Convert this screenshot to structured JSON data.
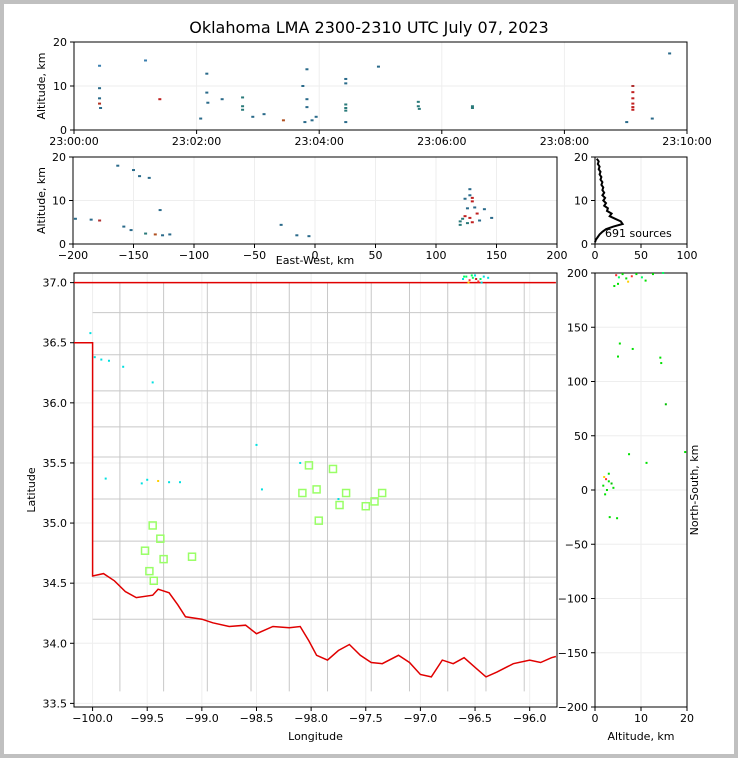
{
  "title": "Oklahoma LMA 2300-2310 UTC July 07, 2023",
  "colors": {
    "background": "#c0c0c0",
    "state_border": "#e00000",
    "county_lines": "#c8c8c8",
    "grid": "#eeeeee",
    "station_marker": "#99ff66"
  },
  "chart_data": [
    {
      "id": "time-height",
      "type": "scatter",
      "xlabel": "",
      "ylabel": "Altitude, km",
      "x_ticks": [
        "23:00:00",
        "23:02:00",
        "23:04:00",
        "23:06:00",
        "23:08:00",
        "23:10:00"
      ],
      "y_ticks": [
        "0",
        "10",
        "20"
      ],
      "xlim": [
        "23:00:00",
        "23:10:00"
      ],
      "ylim": [
        0,
        20
      ],
      "points": [
        {
          "t": 25,
          "alt": 14.6,
          "c": "#3a7fb0"
        },
        {
          "t": 25,
          "alt": 9.5,
          "c": "#2a6a8a"
        },
        {
          "t": 25,
          "alt": 7.2,
          "c": "#2a6a8a"
        },
        {
          "t": 25,
          "alt": 6.0,
          "c": "#b03020"
        },
        {
          "t": 26,
          "alt": 5.0,
          "c": "#2a6a8a"
        },
        {
          "t": 70,
          "alt": 15.8,
          "c": "#3a7fb0"
        },
        {
          "t": 84,
          "alt": 7.0,
          "c": "#c02020"
        },
        {
          "t": 124,
          "alt": 2.6,
          "c": "#2a6a8a"
        },
        {
          "t": 130,
          "alt": 12.8,
          "c": "#2a6a8a"
        },
        {
          "t": 130,
          "alt": 8.5,
          "c": "#2a6a8a"
        },
        {
          "t": 131,
          "alt": 6.2,
          "c": "#2a6a8a"
        },
        {
          "t": 145,
          "alt": 7.0,
          "c": "#2a6a8a"
        },
        {
          "t": 165,
          "alt": 7.4,
          "c": "#2a7a7a"
        },
        {
          "t": 165,
          "alt": 5.4,
          "c": "#2a7a7a"
        },
        {
          "t": 165,
          "alt": 4.6,
          "c": "#2a7a7a"
        },
        {
          "t": 175,
          "alt": 3.0,
          "c": "#2a6a8a"
        },
        {
          "t": 186,
          "alt": 3.6,
          "c": "#2a6a8a"
        },
        {
          "t": 205,
          "alt": 2.2,
          "c": "#b05020"
        },
        {
          "t": 224,
          "alt": 10.0,
          "c": "#2a6a8a"
        },
        {
          "t": 226,
          "alt": 1.8,
          "c": "#2a6a8a"
        },
        {
          "t": 228,
          "alt": 13.8,
          "c": "#2a6a8a"
        },
        {
          "t": 228,
          "alt": 7.0,
          "c": "#2a6a8a"
        },
        {
          "t": 228,
          "alt": 5.2,
          "c": "#2a6a8a"
        },
        {
          "t": 233,
          "alt": 2.2,
          "c": "#2a6a8a"
        },
        {
          "t": 237,
          "alt": 3.0,
          "c": "#2a6a8a"
        },
        {
          "t": 266,
          "alt": 11.6,
          "c": "#2a6a8a"
        },
        {
          "t": 266,
          "alt": 10.6,
          "c": "#2a6a8a"
        },
        {
          "t": 266,
          "alt": 5.8,
          "c": "#2a7a7a"
        },
        {
          "t": 266,
          "alt": 5.0,
          "c": "#2a7a7a"
        },
        {
          "t": 266,
          "alt": 4.4,
          "c": "#2a7a7a"
        },
        {
          "t": 266,
          "alt": 1.8,
          "c": "#2a6a8a"
        },
        {
          "t": 298,
          "alt": 14.4,
          "c": "#2a6a8a"
        },
        {
          "t": 337,
          "alt": 6.4,
          "c": "#2a7a7a"
        },
        {
          "t": 337,
          "alt": 5.4,
          "c": "#2a7a7a"
        },
        {
          "t": 338,
          "alt": 4.8,
          "c": "#2a7a7a"
        },
        {
          "t": 390,
          "alt": 5.4,
          "c": "#2a7a7a"
        },
        {
          "t": 390,
          "alt": 5.0,
          "c": "#2a7a7a"
        },
        {
          "t": 547,
          "alt": 10.0,
          "c": "#b03030"
        },
        {
          "t": 547,
          "alt": 8.6,
          "c": "#c02020"
        },
        {
          "t": 547,
          "alt": 7.2,
          "c": "#c02020"
        },
        {
          "t": 547,
          "alt": 6.0,
          "c": "#c02020"
        },
        {
          "t": 547,
          "alt": 5.2,
          "c": "#c02020"
        },
        {
          "t": 547,
          "alt": 4.6,
          "c": "#c02020"
        },
        {
          "t": 541,
          "alt": 1.8,
          "c": "#2a6a8a"
        },
        {
          "t": 566,
          "alt": 2.6,
          "c": "#2a6a8a"
        },
        {
          "t": 583,
          "alt": 17.4,
          "c": "#2a6a8a"
        }
      ]
    },
    {
      "id": "east-west-altitude",
      "type": "scatter",
      "xlabel": "East-West, km",
      "ylabel": "Altitude, km",
      "x_ticks": [
        "−200",
        "−150",
        "−100",
        "−50",
        "0",
        "50",
        "100",
        "150",
        "200"
      ],
      "y_ticks": [
        "0",
        "10",
        "20"
      ],
      "xlim": [
        -200,
        200
      ],
      "ylim": [
        0,
        20
      ],
      "points": [
        {
          "x": -198,
          "y": 5.8,
          "c": "#2a6a8a"
        },
        {
          "x": -185,
          "y": 5.6,
          "c": "#2a6a8a"
        },
        {
          "x": -178,
          "y": 5.4,
          "c": "#b03030"
        },
        {
          "x": -163,
          "y": 18.0,
          "c": "#2a6a8a"
        },
        {
          "x": -150,
          "y": 17.0,
          "c": "#2a6a8a"
        },
        {
          "x": -145,
          "y": 15.6,
          "c": "#2a6a8a"
        },
        {
          "x": -137,
          "y": 15.2,
          "c": "#2a6a8a"
        },
        {
          "x": -158,
          "y": 4.0,
          "c": "#2a6a8a"
        },
        {
          "x": -152,
          "y": 3.2,
          "c": "#2a6a8a"
        },
        {
          "x": -140,
          "y": 2.4,
          "c": "#2a7a7a"
        },
        {
          "x": -132,
          "y": 2.2,
          "c": "#b05020"
        },
        {
          "x": -126,
          "y": 2.0,
          "c": "#2a6a8a"
        },
        {
          "x": -120,
          "y": 2.2,
          "c": "#2a6a8a"
        },
        {
          "x": -128,
          "y": 7.8,
          "c": "#2a6a8a"
        },
        {
          "x": -28,
          "y": 4.4,
          "c": "#2a6a8a"
        },
        {
          "x": -15,
          "y": 2.0,
          "c": "#2a6a8a"
        },
        {
          "x": -5,
          "y": 1.8,
          "c": "#2a6a8a"
        },
        {
          "x": 120,
          "y": 5.2,
          "c": "#2a7a7a"
        },
        {
          "x": 120,
          "y": 4.4,
          "c": "#2a7a7a"
        },
        {
          "x": 122,
          "y": 5.8,
          "c": "#2a7a7a"
        },
        {
          "x": 124,
          "y": 10.4,
          "c": "#2a6a8a"
        },
        {
          "x": 124,
          "y": 6.4,
          "c": "#c02020"
        },
        {
          "x": 126,
          "y": 8.2,
          "c": "#2a6a8a"
        },
        {
          "x": 128,
          "y": 12.6,
          "c": "#2a6a8a"
        },
        {
          "x": 128,
          "y": 11.2,
          "c": "#2a6a8a"
        },
        {
          "x": 128,
          "y": 6.0,
          "c": "#c02020"
        },
        {
          "x": 130,
          "y": 10.6,
          "c": "#c02020"
        },
        {
          "x": 130,
          "y": 9.8,
          "c": "#c02020"
        },
        {
          "x": 130,
          "y": 5.0,
          "c": "#c02020"
        },
        {
          "x": 132,
          "y": 8.4,
          "c": "#2a6a8a"
        },
        {
          "x": 134,
          "y": 7.0,
          "c": "#c02020"
        },
        {
          "x": 136,
          "y": 5.4,
          "c": "#2a6a8a"
        },
        {
          "x": 140,
          "y": 8.0,
          "c": "#2a6a8a"
        },
        {
          "x": 146,
          "y": 6.0,
          "c": "#2a6a8a"
        },
        {
          "x": 126,
          "y": 4.8,
          "c": "#2a7a7a"
        }
      ]
    },
    {
      "id": "altitude-histogram",
      "type": "line",
      "xlabel": "",
      "ylabel": "",
      "x_ticks": [
        "0",
        "50",
        "100"
      ],
      "y_ticks": [
        "0",
        "10",
        "20"
      ],
      "xlim": [
        0,
        100
      ],
      "ylim": [
        0,
        20
      ],
      "annotation": "691 sources",
      "profile": [
        [
          2,
          19.6
        ],
        [
          4,
          19.0
        ],
        [
          3,
          18.4
        ],
        [
          5,
          17.8
        ],
        [
          4,
          17.2
        ],
        [
          6,
          16.6
        ],
        [
          5,
          16.0
        ],
        [
          7,
          15.4
        ],
        [
          6,
          14.8
        ],
        [
          8,
          14.2
        ],
        [
          7,
          13.6
        ],
        [
          9,
          13.0
        ],
        [
          8,
          12.4
        ],
        [
          10,
          11.8
        ],
        [
          8,
          11.2
        ],
        [
          11,
          10.6
        ],
        [
          9,
          10.0
        ],
        [
          12,
          9.4
        ],
        [
          10,
          8.8
        ],
        [
          14,
          8.2
        ],
        [
          13,
          7.6
        ],
        [
          18,
          7.0
        ],
        [
          16,
          6.4
        ],
        [
          22,
          5.8
        ],
        [
          28,
          5.2
        ],
        [
          30,
          4.6
        ],
        [
          20,
          4.0
        ],
        [
          12,
          3.4
        ],
        [
          8,
          2.8
        ],
        [
          5,
          2.2
        ],
        [
          3,
          1.6
        ],
        [
          1,
          1.0
        ],
        [
          0,
          0.4
        ]
      ]
    },
    {
      "id": "plan-view-map",
      "type": "scatter",
      "xlabel": "Longitude",
      "ylabel": "Latitude",
      "x_ticks": [
        "−100.0",
        "−99.5",
        "−99.0",
        "−98.5",
        "−98.0",
        "−97.5",
        "−97.0",
        "−96.5",
        "−96.0"
      ],
      "y_ticks": [
        "33.5",
        "34.0",
        "34.5",
        "35.0",
        "35.5",
        "36.0",
        "36.5",
        "37.0"
      ],
      "xlim": [
        -100.17,
        -95.75
      ],
      "ylim": [
        33.47,
        37.08
      ],
      "stations": [
        [
          -98.02,
          35.48
        ],
        [
          -97.8,
          35.45
        ],
        [
          -97.95,
          35.28
        ],
        [
          -98.08,
          35.25
        ],
        [
          -97.68,
          35.25
        ],
        [
          -97.35,
          35.25
        ],
        [
          -97.42,
          35.18
        ],
        [
          -97.5,
          35.14
        ],
        [
          -97.74,
          35.15
        ],
        [
          -97.93,
          35.02
        ],
        [
          -99.45,
          34.98
        ],
        [
          -99.38,
          34.87
        ],
        [
          -99.52,
          34.77
        ],
        [
          -99.35,
          34.7
        ],
        [
          -99.09,
          34.72
        ],
        [
          -99.48,
          34.6
        ],
        [
          -99.44,
          34.52
        ]
      ],
      "sources": [
        {
          "lon": -100.02,
          "lat": 36.58,
          "c": "#00e0e0"
        },
        {
          "lon": -99.98,
          "lat": 36.38,
          "c": "#00e0e0"
        },
        {
          "lon": -99.92,
          "lat": 36.36,
          "c": "#00e0e0"
        },
        {
          "lon": -99.85,
          "lat": 36.35,
          "c": "#00e0e0"
        },
        {
          "lon": -99.72,
          "lat": 36.3,
          "c": "#00e0e0"
        },
        {
          "lon": -99.45,
          "lat": 36.17,
          "c": "#00e0e0"
        },
        {
          "lon": -99.5,
          "lat": 35.36,
          "c": "#00e0e0"
        },
        {
          "lon": -99.4,
          "lat": 35.35,
          "c": "#ffd000"
        },
        {
          "lon": -99.3,
          "lat": 35.34,
          "c": "#00e0e0"
        },
        {
          "lon": -99.2,
          "lat": 35.34,
          "c": "#00e0e0"
        },
        {
          "lon": -99.55,
          "lat": 35.33,
          "c": "#00e0e0"
        },
        {
          "lon": -98.5,
          "lat": 35.65,
          "c": "#00e0e0"
        },
        {
          "lon": -98.45,
          "lat": 35.28,
          "c": "#00e0e0"
        },
        {
          "lon": -98.1,
          "lat": 35.5,
          "c": "#00e0e0"
        },
        {
          "lon": -97.75,
          "lat": 35.2,
          "c": "#00e0e0"
        },
        {
          "lon": -99.88,
          "lat": 35.37,
          "c": "#00e0e0"
        },
        {
          "lon": -96.61,
          "lat": 37.03,
          "c": "#00e0e0"
        },
        {
          "lon": -96.58,
          "lat": 37.05,
          "c": "#00ff60"
        },
        {
          "lon": -96.55,
          "lat": 37.02,
          "c": "#ff3030"
        },
        {
          "lon": -96.52,
          "lat": 37.04,
          "c": "#00ff60"
        },
        {
          "lon": -96.5,
          "lat": 37.06,
          "c": "#00e0e0"
        },
        {
          "lon": -96.47,
          "lat": 37.01,
          "c": "#ff3030"
        },
        {
          "lon": -96.45,
          "lat": 37.03,
          "c": "#00ff60"
        },
        {
          "lon": -96.42,
          "lat": 37.05,
          "c": "#00e0e0"
        },
        {
          "lon": -96.56,
          "lat": 37.0,
          "c": "#ffd000"
        },
        {
          "lon": -96.49,
          "lat": 37.03,
          "c": "#c02020"
        },
        {
          "lon": -96.53,
          "lat": 37.06,
          "c": "#00ff60"
        },
        {
          "lon": -96.44,
          "lat": 37.0,
          "c": "#00e0e0"
        },
        {
          "lon": -96.6,
          "lat": 37.05,
          "c": "#00ff60"
        },
        {
          "lon": -96.38,
          "lat": 37.04,
          "c": "#00e0e0"
        }
      ]
    },
    {
      "id": "altitude-north-south",
      "type": "scatter",
      "xlabel": "Altitude, km",
      "ylabel": "North-South, km",
      "x_ticks": [
        "0",
        "10",
        "20"
      ],
      "y_ticks": [
        "−200",
        "−150",
        "−100",
        "−50",
        "0",
        "50",
        "100",
        "150",
        "200"
      ],
      "xlim": [
        0,
        20
      ],
      "ylim": [
        -200,
        200
      ],
      "points": [
        {
          "x": 4.6,
          "y": 198,
          "c": "#ff3030"
        },
        {
          "x": 5.2,
          "y": 196,
          "c": "#00ff60"
        },
        {
          "x": 6.0,
          "y": 199,
          "c": "#00e000"
        },
        {
          "x": 6.8,
          "y": 195,
          "c": "#00e000"
        },
        {
          "x": 8.0,
          "y": 197,
          "c": "#ff3030"
        },
        {
          "x": 9.0,
          "y": 199,
          "c": "#00e000"
        },
        {
          "x": 10.2,
          "y": 196,
          "c": "#00ff60"
        },
        {
          "x": 11.0,
          "y": 193,
          "c": "#00e000"
        },
        {
          "x": 12.6,
          "y": 199,
          "c": "#00e000"
        },
        {
          "x": 14.8,
          "y": 200,
          "c": "#00ff60"
        },
        {
          "x": 5.0,
          "y": 190,
          "c": "#00e000"
        },
        {
          "x": 4.2,
          "y": 188,
          "c": "#00e000"
        },
        {
          "x": 7.2,
          "y": 192,
          "c": "#ffd000"
        },
        {
          "x": 5.4,
          "y": 135,
          "c": "#00e000"
        },
        {
          "x": 5.0,
          "y": 123,
          "c": "#00e000"
        },
        {
          "x": 8.2,
          "y": 130,
          "c": "#00e000"
        },
        {
          "x": 14.2,
          "y": 122,
          "c": "#00e000"
        },
        {
          "x": 14.4,
          "y": 117,
          "c": "#00e000"
        },
        {
          "x": 15.4,
          "y": 79,
          "c": "#00c000"
        },
        {
          "x": 7.4,
          "y": 33,
          "c": "#00e000"
        },
        {
          "x": 11.2,
          "y": 25,
          "c": "#00e000"
        },
        {
          "x": 19.6,
          "y": 35,
          "c": "#00e000"
        },
        {
          "x": 2.0,
          "y": 12,
          "c": "#ffd000"
        },
        {
          "x": 2.4,
          "y": 10,
          "c": "#ff3030"
        },
        {
          "x": 3.0,
          "y": 8,
          "c": "#00e000"
        },
        {
          "x": 1.8,
          "y": 4,
          "c": "#00e000"
        },
        {
          "x": 3.6,
          "y": 6,
          "c": "#00c000"
        },
        {
          "x": 2.6,
          "y": 0,
          "c": "#00e000"
        },
        {
          "x": 3.0,
          "y": 15,
          "c": "#00e000"
        },
        {
          "x": 4.0,
          "y": 2,
          "c": "#00e000"
        },
        {
          "x": 3.2,
          "y": -25,
          "c": "#00e000"
        },
        {
          "x": 4.8,
          "y": -26,
          "c": "#00e000"
        },
        {
          "x": 2.2,
          "y": -4,
          "c": "#00e000"
        }
      ]
    }
  ]
}
